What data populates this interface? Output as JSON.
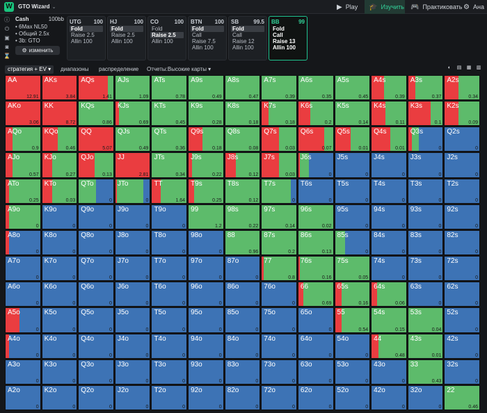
{
  "app": {
    "title": "GTO Wizard",
    "chevron": "⌄"
  },
  "nav": [
    {
      "id": "nav-play",
      "icon": "▶",
      "label": "Play",
      "active": false
    },
    {
      "id": "nav-study",
      "icon": "🎓",
      "label": "Изучить",
      "active": true
    },
    {
      "id": "nav-practice",
      "icon": "🎮",
      "label": "Практиковать",
      "active": false
    },
    {
      "id": "nav-analyze",
      "icon": "⚙",
      "label": "Ана",
      "active": false
    }
  ],
  "left_icons": [
    "info-icon",
    "power-icon",
    "save-icon",
    "gamepad-icon",
    "hourglass-icon"
  ],
  "left_icon_glyphs": [
    "ⓘ",
    "⏻",
    "▣",
    "◙",
    "⌛"
  ],
  "settings": {
    "label": "Cash",
    "stack": "100bb",
    "items": [
      "• 6Max NL50",
      "• Общий 2.5x",
      "• 3b: GTO"
    ],
    "change_label": "изменить",
    "change_icon": "⚙"
  },
  "positions": [
    {
      "name": "UTG",
      "stack": "100",
      "actions": [
        "Fold",
        "Raise 2.5",
        "Allin 100"
      ],
      "selected": 0,
      "active": false
    },
    {
      "name": "HJ",
      "stack": "100",
      "actions": [
        "Fold",
        "Raise 2.5",
        "Allin 100"
      ],
      "selected": 0,
      "active": false
    },
    {
      "name": "CO",
      "stack": "100",
      "actions": [
        "Fold",
        "Raise 2.5",
        "Allin 100"
      ],
      "selected": 1,
      "active": false
    },
    {
      "name": "BTN",
      "stack": "100",
      "actions": [
        "Fold",
        "Call",
        "Raise 7.5",
        "Allin 100"
      ],
      "selected": 0,
      "active": false
    },
    {
      "name": "SB",
      "stack": "99.5",
      "actions": [
        "Fold",
        "Call",
        "Raise 12",
        "Allin 100"
      ],
      "selected": 0,
      "active": false
    },
    {
      "name": "BB",
      "stack": "99",
      "actions": [
        "Fold",
        "Call",
        "Raise 13",
        "Allin 100"
      ],
      "selected": -1,
      "active": true
    }
  ],
  "tabs": {
    "strategy": "стратегия + EV ▾",
    "ranges": "диапазоны",
    "distribution": "распределение",
    "reports": "Отчеты:Высокие карты ▾"
  },
  "view_icons": [
    "◐",
    "▤",
    "▦",
    "▥"
  ],
  "colors": {
    "raise": "#ea3d40",
    "call": "#5dbb6b",
    "fold": "#3d73b5"
  },
  "matrix": {
    "ranks": [
      "A",
      "K",
      "Q",
      "J",
      "T",
      "9",
      "8",
      "7",
      "6",
      "5",
      "4",
      "3",
      "2"
    ],
    "cells": [
      [
        {
          "r": 1,
          "c": 0,
          "ev": "12.91"
        },
        {
          "r": 1,
          "c": 0,
          "ev": "3.84"
        },
        {
          "r": 0.85,
          "c": 0.15,
          "ev": "1.41"
        },
        {
          "r": 0,
          "c": 1,
          "ev": "1.09"
        },
        {
          "r": 0,
          "c": 1,
          "ev": "0.78"
        },
        {
          "r": 0,
          "c": 1,
          "ev": "0.49"
        },
        {
          "r": 0,
          "c": 1,
          "ev": "0.47"
        },
        {
          "r": 0,
          "c": 1,
          "ev": "0.39"
        },
        {
          "r": 0,
          "c": 1,
          "ev": "0.35"
        },
        {
          "r": 0,
          "c": 1,
          "ev": "0.45"
        },
        {
          "r": 0.35,
          "c": 0.65,
          "ev": "0.39"
        },
        {
          "r": 0.2,
          "c": 0.8,
          "ev": "0.37"
        },
        {
          "r": 0.4,
          "c": 0.6,
          "ev": "0.34"
        }
      ],
      [
        {
          "r": 1,
          "c": 0,
          "ev": "3.06"
        },
        {
          "r": 1,
          "c": 0,
          "ev": "8.72"
        },
        {
          "r": 0,
          "c": 1,
          "ev": "0.86"
        },
        {
          "r": 0.1,
          "c": 0.9,
          "ev": "0.69"
        },
        {
          "r": 0,
          "c": 1,
          "ev": "0.45"
        },
        {
          "r": 0,
          "c": 1,
          "ev": "0.28"
        },
        {
          "r": 0,
          "c": 1,
          "ev": "0.18"
        },
        {
          "r": 0.2,
          "c": 0.8,
          "ev": "0.18"
        },
        {
          "r": 0.35,
          "c": 0.65,
          "ev": "0.2"
        },
        {
          "r": 0,
          "c": 1,
          "ev": "0.14"
        },
        {
          "r": 0.4,
          "c": 0.6,
          "ev": "0.11"
        },
        {
          "r": 0.65,
          "c": 0.35,
          "ev": "0.1"
        },
        {
          "r": 0.4,
          "c": 0.6,
          "ev": "0.09"
        }
      ],
      [
        {
          "r": 0.2,
          "c": 0.8,
          "ev": "0.9"
        },
        {
          "r": 0.45,
          "c": 0.55,
          "ev": "0.46"
        },
        {
          "r": 1,
          "c": 0,
          "ev": "5.07"
        },
        {
          "r": 0,
          "c": 1,
          "ev": "0.49"
        },
        {
          "r": 0,
          "c": 1,
          "ev": "0.36"
        },
        {
          "r": 0.4,
          "c": 0.6,
          "ev": "0.18"
        },
        {
          "r": 0,
          "c": 1,
          "ev": "0.08"
        },
        {
          "r": 0.5,
          "c": 0.5,
          "ev": "0.03"
        },
        {
          "r": 0.75,
          "c": 0.25,
          "ev": "0.07"
        },
        {
          "r": 0.45,
          "c": 0.55,
          "ev": "0.01"
        },
        {
          "r": 0.55,
          "c": 0.45,
          "ev": "0.01"
        },
        {
          "r": 0.1,
          "c": 0.2,
          "ev": "0"
        },
        {
          "r": 0,
          "c": 0,
          "ev": "0"
        }
      ],
      [
        {
          "r": 0.2,
          "c": 0.8,
          "ev": "0.57"
        },
        {
          "r": 0.3,
          "c": 0.7,
          "ev": "0.27"
        },
        {
          "r": 0.45,
          "c": 0.55,
          "ev": "0.13"
        },
        {
          "r": 1,
          "c": 0,
          "ev": "2.81"
        },
        {
          "r": 0,
          "c": 1,
          "ev": "0.34"
        },
        {
          "r": 0.1,
          "c": 0.9,
          "ev": "0.22"
        },
        {
          "r": 0.3,
          "c": 0.7,
          "ev": "0.12"
        },
        {
          "r": 0.5,
          "c": 0.5,
          "ev": "0.03"
        },
        {
          "r": 0.05,
          "c": 0.25,
          "ev": "0"
        },
        {
          "r": 0,
          "c": 0,
          "ev": "0"
        },
        {
          "r": 0,
          "c": 0,
          "ev": "0"
        },
        {
          "r": 0,
          "c": 0,
          "ev": "0"
        },
        {
          "r": 0,
          "c": 0,
          "ev": "0"
        }
      ],
      [
        {
          "r": 0.1,
          "c": 0.9,
          "ev": "0.25"
        },
        {
          "r": 0.3,
          "c": 0.7,
          "ev": "0.03"
        },
        {
          "r": 0,
          "c": 0.5,
          "ev": "0"
        },
        {
          "r": 0.05,
          "c": 0.75,
          "ev": "0"
        },
        {
          "r": 0.25,
          "c": 0.75,
          "ev": "1.64"
        },
        {
          "r": 0.15,
          "c": 0.85,
          "ev": "0.25"
        },
        {
          "r": 0,
          "c": 1,
          "ev": "0.12"
        },
        {
          "r": 0,
          "c": 0.85,
          "ev": "0"
        },
        {
          "r": 0,
          "c": 0,
          "ev": "0"
        },
        {
          "r": 0,
          "c": 0,
          "ev": "0"
        },
        {
          "r": 0,
          "c": 0,
          "ev": "0"
        },
        {
          "r": 0,
          "c": 0,
          "ev": "0"
        },
        {
          "r": 0,
          "c": 0,
          "ev": "0"
        }
      ],
      [
        {
          "r": 0.1,
          "c": 0.9,
          "ev": "0"
        },
        {
          "r": 0,
          "c": 0,
          "ev": "0"
        },
        {
          "r": 0,
          "c": 0,
          "ev": "0"
        },
        {
          "r": 0,
          "c": 0,
          "ev": "0"
        },
        {
          "r": 0,
          "c": 0,
          "ev": "0"
        },
        {
          "r": 0,
          "c": 1,
          "ev": "1.2"
        },
        {
          "r": 0,
          "c": 1,
          "ev": "0.22"
        },
        {
          "r": 0,
          "c": 1,
          "ev": "0.14"
        },
        {
          "r": 0,
          "c": 1,
          "ev": "0.02"
        },
        {
          "r": 0,
          "c": 0,
          "ev": "0"
        },
        {
          "r": 0,
          "c": 0,
          "ev": "0"
        },
        {
          "r": 0,
          "c": 0,
          "ev": "0"
        },
        {
          "r": 0,
          "c": 0,
          "ev": "0"
        }
      ],
      [
        {
          "r": 0.1,
          "c": 0,
          "ev": "0"
        },
        {
          "r": 0,
          "c": 0,
          "ev": "0"
        },
        {
          "r": 0,
          "c": 0,
          "ev": "0"
        },
        {
          "r": 0,
          "c": 0,
          "ev": "0"
        },
        {
          "r": 0,
          "c": 0,
          "ev": "0"
        },
        {
          "r": 0,
          "c": 0,
          "ev": "0"
        },
        {
          "r": 0,
          "c": 1,
          "ev": "0.96"
        },
        {
          "r": 0,
          "c": 1,
          "ev": "0.2"
        },
        {
          "r": 0,
          "c": 1,
          "ev": "0.13"
        },
        {
          "r": 0,
          "c": 0.3,
          "ev": "0"
        },
        {
          "r": 0,
          "c": 0,
          "ev": "0"
        },
        {
          "r": 0,
          "c": 0,
          "ev": "0"
        },
        {
          "r": 0,
          "c": 0,
          "ev": "0"
        }
      ],
      [
        {
          "r": 0,
          "c": 0,
          "ev": "0"
        },
        {
          "r": 0,
          "c": 0,
          "ev": "0"
        },
        {
          "r": 0,
          "c": 0,
          "ev": "0"
        },
        {
          "r": 0,
          "c": 0,
          "ev": "0"
        },
        {
          "r": 0,
          "c": 0,
          "ev": "0"
        },
        {
          "r": 0,
          "c": 0,
          "ev": "0"
        },
        {
          "r": 0,
          "c": 0,
          "ev": "0"
        },
        {
          "r": 0.05,
          "c": 0.95,
          "ev": "0.8"
        },
        {
          "r": 0.05,
          "c": 0.95,
          "ev": "0.16"
        },
        {
          "r": 0,
          "c": 1,
          "ev": "0.05"
        },
        {
          "r": 0,
          "c": 0,
          "ev": "0"
        },
        {
          "r": 0,
          "c": 0,
          "ev": "0"
        },
        {
          "r": 0,
          "c": 0,
          "ev": "0"
        }
      ],
      [
        {
          "r": 0,
          "c": 0,
          "ev": "0"
        },
        {
          "r": 0,
          "c": 0,
          "ev": "0"
        },
        {
          "r": 0,
          "c": 0,
          "ev": "0"
        },
        {
          "r": 0,
          "c": 0,
          "ev": "0"
        },
        {
          "r": 0,
          "c": 0,
          "ev": "0"
        },
        {
          "r": 0,
          "c": 0,
          "ev": "0"
        },
        {
          "r": 0,
          "c": 0,
          "ev": "0"
        },
        {
          "r": 0,
          "c": 0,
          "ev": "0"
        },
        {
          "r": 0.15,
          "c": 0.85,
          "ev": "0.69"
        },
        {
          "r": 0.2,
          "c": 0.8,
          "ev": "0.16"
        },
        {
          "r": 0.15,
          "c": 0.85,
          "ev": "0.06"
        },
        {
          "r": 0,
          "c": 0,
          "ev": "0"
        },
        {
          "r": 0,
          "c": 0,
          "ev": "0"
        }
      ],
      [
        {
          "r": 0.4,
          "c": 0,
          "ev": "0"
        },
        {
          "r": 0,
          "c": 0,
          "ev": "0"
        },
        {
          "r": 0,
          "c": 0,
          "ev": "0"
        },
        {
          "r": 0,
          "c": 0,
          "ev": "0"
        },
        {
          "r": 0,
          "c": 0,
          "ev": "0"
        },
        {
          "r": 0,
          "c": 0,
          "ev": "0"
        },
        {
          "r": 0,
          "c": 0,
          "ev": "0"
        },
        {
          "r": 0,
          "c": 0,
          "ev": "0"
        },
        {
          "r": 0,
          "c": 0,
          "ev": "0"
        },
        {
          "r": 0.2,
          "c": 0.8,
          "ev": "0.54"
        },
        {
          "r": 0,
          "c": 1,
          "ev": "0.15"
        },
        {
          "r": 0,
          "c": 1,
          "ev": "0.04"
        },
        {
          "r": 0,
          "c": 0,
          "ev": "0"
        }
      ],
      [
        {
          "r": 0.1,
          "c": 0,
          "ev": "0"
        },
        {
          "r": 0,
          "c": 0,
          "ev": "0"
        },
        {
          "r": 0,
          "c": 0,
          "ev": "0"
        },
        {
          "r": 0,
          "c": 0,
          "ev": "0"
        },
        {
          "r": 0,
          "c": 0,
          "ev": "0"
        },
        {
          "r": 0,
          "c": 0,
          "ev": "0"
        },
        {
          "r": 0,
          "c": 0,
          "ev": "0"
        },
        {
          "r": 0,
          "c": 0,
          "ev": "0"
        },
        {
          "r": 0,
          "c": 0,
          "ev": "0"
        },
        {
          "r": 0,
          "c": 0,
          "ev": "0"
        },
        {
          "r": 0.2,
          "c": 0.8,
          "ev": "0.48"
        },
        {
          "r": 0,
          "c": 1,
          "ev": "0.01"
        },
        {
          "r": 0,
          "c": 0,
          "ev": "0"
        }
      ],
      [
        {
          "r": 0,
          "c": 0,
          "ev": "0"
        },
        {
          "r": 0,
          "c": 0,
          "ev": "0"
        },
        {
          "r": 0,
          "c": 0,
          "ev": "0"
        },
        {
          "r": 0,
          "c": 0,
          "ev": "0"
        },
        {
          "r": 0,
          "c": 0,
          "ev": "0"
        },
        {
          "r": 0,
          "c": 0,
          "ev": "0"
        },
        {
          "r": 0,
          "c": 0,
          "ev": "0"
        },
        {
          "r": 0,
          "c": 0,
          "ev": "0"
        },
        {
          "r": 0,
          "c": 0,
          "ev": "0"
        },
        {
          "r": 0,
          "c": 0,
          "ev": "0"
        },
        {
          "r": 0,
          "c": 0,
          "ev": "0"
        },
        {
          "r": 0,
          "c": 1,
          "ev": "0.43"
        },
        {
          "r": 0,
          "c": 0,
          "ev": "0"
        }
      ],
      [
        {
          "r": 0,
          "c": 0,
          "ev": "0"
        },
        {
          "r": 0,
          "c": 0,
          "ev": "0"
        },
        {
          "r": 0,
          "c": 0,
          "ev": "0"
        },
        {
          "r": 0,
          "c": 0,
          "ev": "0"
        },
        {
          "r": 0,
          "c": 0,
          "ev": "0"
        },
        {
          "r": 0,
          "c": 0,
          "ev": "0"
        },
        {
          "r": 0,
          "c": 0,
          "ev": "0"
        },
        {
          "r": 0,
          "c": 0,
          "ev": "0"
        },
        {
          "r": 0,
          "c": 0,
          "ev": "0"
        },
        {
          "r": 0,
          "c": 0,
          "ev": "0"
        },
        {
          "r": 0,
          "c": 0,
          "ev": "0"
        },
        {
          "r": 0,
          "c": 0,
          "ev": "0"
        },
        {
          "r": 0,
          "c": 1,
          "ev": "0.46"
        }
      ]
    ]
  }
}
